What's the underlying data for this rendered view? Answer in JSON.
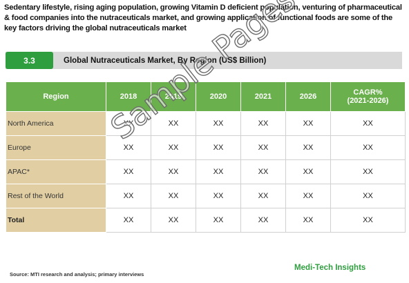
{
  "intro_text": "Sedentary lifestyle, rising aging population, growing Vitamin D deficient population, venturing of pharmaceutical & food companies into the nutraceuticals market, and growing application of functional foods are some of the key factors driving the global nutraceuticals market",
  "heading": {
    "number": "3.3",
    "title": "Global Nutraceuticals Market, By Region (US$ Billion)"
  },
  "table": {
    "headers": [
      "Region",
      "2018",
      "2019",
      "2020",
      "2021",
      "2026",
      "CAGR%"
    ],
    "cagr_sub": "(2021-2026)",
    "rows": [
      {
        "region": "North America",
        "values": [
          "XX",
          "XX",
          "XX",
          "XX",
          "XX",
          "XX"
        ]
      },
      {
        "region": "Europe",
        "values": [
          "XX",
          "XX",
          "XX",
          "XX",
          "XX",
          "XX"
        ]
      },
      {
        "region": "APAC*",
        "values": [
          "XX",
          "XX",
          "XX",
          "XX",
          "XX",
          "XX"
        ]
      },
      {
        "region": "Rest of the World",
        "values": [
          "XX",
          "XX",
          "XX",
          "XX",
          "XX",
          "XX"
        ]
      },
      {
        "region": "Total",
        "values": [
          "XX",
          "XX",
          "XX",
          "XX",
          "XX",
          "XX"
        ]
      }
    ]
  },
  "watermark": "Sample Pages",
  "source": "Source: MTI research and analysis; primary interviews",
  "brand": "Medi-Tech Insights",
  "colors": {
    "accent_green": "#2e9e3e",
    "header_green": "#6ab04c",
    "region_tan": "#e1cfa3",
    "heading_bar_gray": "#d9d9d9"
  }
}
